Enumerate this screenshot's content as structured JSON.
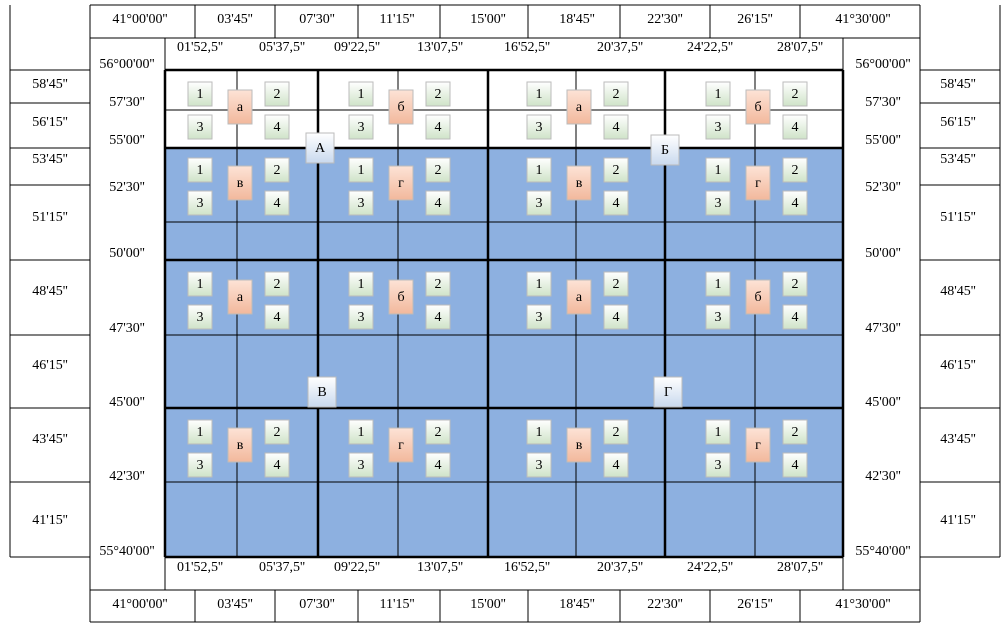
{
  "top_outer": [
    "41°00'00''",
    "03'45''",
    "07'30''",
    "11'15''",
    "15'00''",
    "18'45''",
    "22'30''",
    "26'15''",
    "41°30'00''"
  ],
  "top_inner": [
    "01'52,5''",
    "05'37,5''",
    "09'22,5''",
    "13'07,5''",
    "16'52,5''",
    "20'37,5''",
    "24'22,5''",
    "28'07,5''"
  ],
  "side_outer": [
    "58'45''",
    "56'15''",
    "53'45''",
    "51'15''",
    "48'45''",
    "46'15''",
    "43'45''",
    "41'15''"
  ],
  "side_inner": [
    "56°00'00''",
    "57'30''",
    "55'00''",
    "52'30''",
    "50'00''",
    "47'30''",
    "45'00''",
    "42'30''",
    "55°40'00''"
  ],
  "sheets": [
    "А",
    "Б",
    "В",
    "Г"
  ],
  "cells": [
    [
      "а",
      "б",
      "а",
      "б"
    ],
    [
      "в",
      "г",
      "в",
      "г"
    ],
    [
      "а",
      "б",
      "а",
      "б"
    ],
    [
      "в",
      "г",
      "в",
      "г"
    ]
  ],
  "quadrants": [
    "1",
    "2",
    "3",
    "4"
  ]
}
